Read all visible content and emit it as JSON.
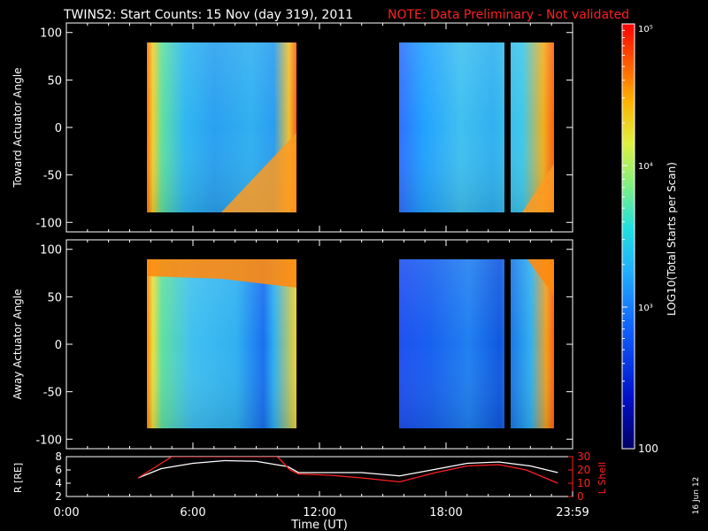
{
  "header": {
    "title": "TWINS2: Start Counts: 15 Nov (day 319), 2011",
    "note": "NOTE: Data Preliminary - Not validated"
  },
  "colors": {
    "background": "#000000",
    "foreground": "#ffffff",
    "note": "#ff2020",
    "lshell": "#ff2020",
    "radius": "#ffffff"
  },
  "colorbar": {
    "label": "LOG10(Total Starts per Scan)",
    "ticks": [
      "10⁵",
      "10⁴",
      "10³",
      "100"
    ],
    "scale": "log",
    "range": [
      100,
      100000
    ]
  },
  "panels": {
    "top": {
      "ylabel": "Toward Actuator Angle"
    },
    "middle": {
      "ylabel": "Away Actuator Angle"
    },
    "bottom": {
      "ylabel_left": "R [RE]",
      "ylabel_right": "L Shell"
    }
  },
  "xaxis": {
    "label": "Time (UT)",
    "ticks": [
      "0:00",
      "6:00",
      "12:00",
      "18:00",
      "23:59"
    ]
  },
  "date_stamp": "16 Jun 12",
  "chart_data": [
    {
      "type": "heatmap",
      "name": "toward",
      "ylabel": "Toward Actuator Angle",
      "xlim": [
        0,
        24
      ],
      "ylim": [
        -110,
        110
      ],
      "yticks": [
        100,
        50,
        0,
        -50,
        -100
      ],
      "data_intervals_hours": [
        [
          3.4,
          11.0
        ],
        [
          15.8,
          24.0
        ]
      ],
      "angle_range": [
        -90,
        90
      ],
      "dropout_hours": [
        [
          21.2,
          21.5
        ]
      ]
    },
    {
      "type": "heatmap",
      "name": "away",
      "ylabel": "Away Actuator Angle",
      "xlim": [
        0,
        24
      ],
      "ylim": [
        -110,
        110
      ],
      "yticks": [
        100,
        50,
        0,
        -50,
        -100
      ],
      "data_intervals_hours": [
        [
          3.4,
          11.0
        ],
        [
          15.8,
          24.0
        ]
      ],
      "angle_range": [
        -90,
        90
      ],
      "dropout_hours": [
        [
          21.2,
          21.5
        ]
      ]
    },
    {
      "type": "line",
      "xlim": [
        0,
        24
      ],
      "y_left": {
        "label": "R [RE]",
        "ylim": [
          2,
          8
        ],
        "ticks": [
          8,
          6,
          4,
          2
        ]
      },
      "y_right": {
        "label": "L Shell",
        "ylim": [
          0,
          30
        ],
        "ticks": [
          30,
          20,
          10,
          0
        ]
      },
      "series": [
        {
          "axis": "left",
          "x": [
            3.4,
            4.5,
            6.0,
            7.5,
            9.0,
            10.5,
            11.0,
            12.5,
            14.0,
            15.8,
            17.5,
            19.0,
            20.5,
            22.0,
            23.3
          ],
          "values": [
            4.8,
            6.2,
            7.0,
            7.4,
            7.3,
            6.5,
            5.6,
            5.6,
            5.6,
            5.1,
            6.1,
            7.0,
            7.2,
            6.6,
            5.6
          ]
        },
        {
          "axis": "right",
          "x": [
            3.4,
            4.2,
            5.0,
            9.0,
            10.0,
            10.6,
            11.0,
            12.5,
            14.0,
            15.8,
            17.5,
            19.0,
            20.5,
            21.8,
            23.3
          ],
          "values": [
            14,
            22,
            30,
            30,
            30,
            20,
            17,
            16,
            14,
            11,
            18,
            23,
            24,
            20,
            10
          ]
        }
      ]
    }
  ]
}
